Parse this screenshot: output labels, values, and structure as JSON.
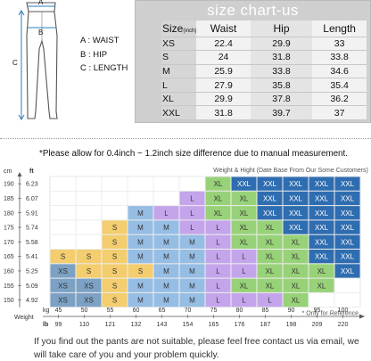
{
  "diagram": {
    "labels": {
      "a_marker": "A",
      "b_marker": "B",
      "c_marker": "C"
    },
    "legend": {
      "a": "A : WAIST",
      "b": "B : HIP",
      "c": "C : LENGTH"
    }
  },
  "size_chart": {
    "title": "size chart-us",
    "size_label": "Size",
    "unit_label": "(inch)",
    "headers": [
      "Waist",
      "Hip",
      "Length"
    ],
    "rows": [
      [
        "XS",
        "22.4",
        "29.9",
        "33"
      ],
      [
        "S",
        "24",
        "31.8",
        "33.8"
      ],
      [
        "M",
        "25.9",
        "33.8",
        "34.6"
      ],
      [
        "L",
        "27.9",
        "35.8",
        "35.4"
      ],
      [
        "XL",
        "29.9",
        "37.8",
        "36.2"
      ],
      [
        "XXL",
        "31.8",
        "39.7",
        "37"
      ]
    ]
  },
  "note": "*Please allow for 0.4inch ~ 1.2inch size difference due to manual measurement.",
  "fit_chart": {
    "title": "Weight & Hight (Date Base From Our Some Customers)",
    "reference_note": "* Only for Reference",
    "axis": {
      "cm_label": "cm",
      "ft_label": "ft",
      "weight_label": "Weight",
      "kg_label": "kg",
      "lb_label": "lb"
    },
    "heights_cm": [
      "190",
      "185",
      "180",
      "175",
      "170",
      "165",
      "160",
      "155",
      "150"
    ],
    "heights_ft": [
      "6.23",
      "6.07",
      "5.91",
      "5.74",
      "5.58",
      "5.41",
      "5.25",
      "5.09",
      "4.92"
    ],
    "weights_kg": [
      "45",
      "50",
      "55",
      "60",
      "65",
      "70",
      "75",
      "80",
      "85",
      "90",
      "95",
      "100"
    ],
    "weights_lb": [
      "99",
      "110",
      "121",
      "132",
      "143",
      "154",
      "165",
      "176",
      "187",
      "198",
      "209",
      "220"
    ],
    "size_colors": {
      "XS": "#7ca1c4",
      "S": "#f3cd6e",
      "M": "#96bde4",
      "L": "#c4a5eb",
      "XL": "#98d278",
      "XXL": "#2f6db1"
    },
    "grid": [
      [
        "",
        "",
        "",
        "",
        "",
        "",
        "XL",
        "XXL",
        "XXL",
        "XXL",
        "XXL",
        "XXL"
      ],
      [
        "",
        "",
        "",
        "",
        "",
        "L",
        "XL",
        "XL",
        "XXL",
        "XXL",
        "XXL",
        "XXL"
      ],
      [
        "",
        "",
        "",
        "M",
        "L",
        "L",
        "XL",
        "XL",
        "XXL",
        "XXL",
        "XXL",
        "XXL"
      ],
      [
        "",
        "",
        "S",
        "M",
        "M",
        "L",
        "L",
        "XL",
        "XL",
        "XXL",
        "XXL",
        "XXL"
      ],
      [
        "",
        "",
        "S",
        "M",
        "M",
        "M",
        "L",
        "XL",
        "XL",
        "XL",
        "XXL",
        "XXL"
      ],
      [
        "S",
        "S",
        "S",
        "M",
        "M",
        "M",
        "L",
        "L",
        "XL",
        "XL",
        "XXL",
        "XXL"
      ],
      [
        "XS",
        "S",
        "S",
        "S",
        "M",
        "M",
        "L",
        "L",
        "XL",
        "XL",
        "XL",
        "XXL"
      ],
      [
        "XS",
        "XS",
        "S",
        "M",
        "M",
        "M",
        "L",
        "XL",
        "XL",
        "XL",
        "XL",
        ""
      ],
      [
        "XS",
        "XS",
        "S",
        "M",
        "M",
        "M",
        "L",
        "L",
        "L",
        "XL",
        "",
        ""
      ]
    ]
  },
  "footer": "If you find out the pants are not suitable, please feel free contact us via email, we will take care of you and your problem quickly."
}
